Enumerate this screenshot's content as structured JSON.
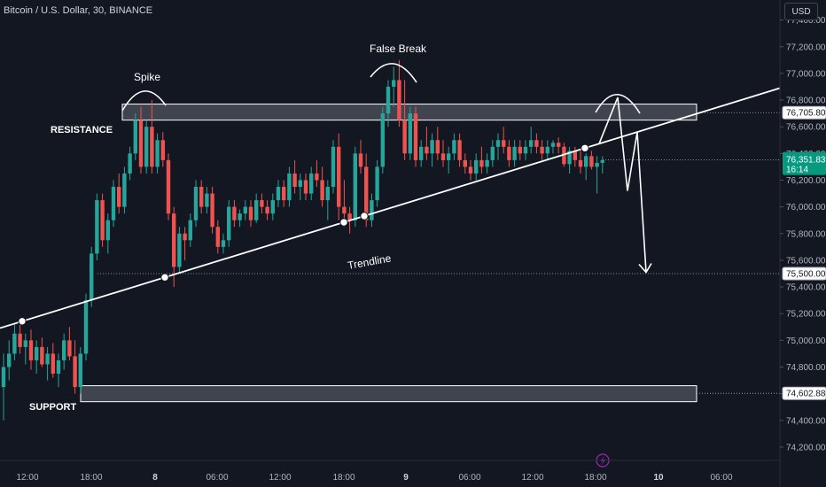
{
  "header": {
    "title": "Bitcoin / U.S. Dollar, 30, BINANCE",
    "currency": "USD"
  },
  "colors": {
    "background": "#131722",
    "up": "#26a69a",
    "down": "#ef5350",
    "accent": "#089981",
    "annotation": "#ffffff",
    "zone_fill": "#9598a1"
  },
  "annotations": {
    "spike": "Spike",
    "false_break": "False Break",
    "resistance": "RESISTANCE",
    "support": "SUPPORT",
    "trendline": "Trendline"
  },
  "price_tags": {
    "resistance": "76,705.80",
    "current": "76,351.83",
    "countdown": "16:14",
    "target": "75,500.00",
    "support": "74,602.88"
  },
  "misc": {
    "icon": "lightning-icon"
  },
  "chart_data": {
    "type": "candlestick",
    "symbol": "BTCUSD",
    "interval": "30",
    "exchange": "BINANCE",
    "y_ticks": [
      74200,
      74400,
      74600,
      74800,
      75000,
      75200,
      75400,
      75600,
      75800,
      76000,
      76200,
      76400,
      76600,
      76800,
      77000,
      77200,
      77400
    ],
    "y_tick_labels": [
      "74,200.00",
      "74,400.00",
      "74,600.00",
      "74,800.00",
      "75,000.00",
      "75,200.00",
      "75,400.00",
      "75,600.00",
      "75,800.00",
      "76,000.00",
      "76,200.00",
      "76,400.00",
      "76,600.00",
      "76,800.00",
      "77,000.00",
      "77,200.00",
      "77,400.00"
    ],
    "ylim": [
      74100,
      77550
    ],
    "x_ticks": [
      "12:00",
      "18:00",
      "8",
      "06:00",
      "12:00",
      "18:00",
      "9",
      "06:00",
      "12:00",
      "18:00",
      "10",
      "06:00"
    ],
    "levels": {
      "resistance_zone": [
        76650,
        76770
      ],
      "support_zone": [
        74540,
        74660
      ],
      "resistance_price": 76705.8,
      "target_price": 75500.0,
      "support_price": 74602.88,
      "last_price": 76351.83
    },
    "trendline": {
      "start": [
        0,
        75100
      ],
      "end": [
        120,
        76620
      ]
    },
    "candles": [
      {
        "o": 74650,
        "h": 74900,
        "l": 74400,
        "c": 74800
      },
      {
        "o": 74800,
        "h": 75000,
        "l": 74700,
        "c": 74900
      },
      {
        "o": 74900,
        "h": 75120,
        "l": 74850,
        "c": 75050
      },
      {
        "o": 75050,
        "h": 75150,
        "l": 74900,
        "c": 74950
      },
      {
        "o": 74950,
        "h": 75050,
        "l": 74820,
        "c": 75000
      },
      {
        "o": 75000,
        "h": 75080,
        "l": 74780,
        "c": 74850
      },
      {
        "o": 74850,
        "h": 75000,
        "l": 74750,
        "c": 74950
      },
      {
        "o": 74950,
        "h": 75020,
        "l": 74800,
        "c": 74820
      },
      {
        "o": 74820,
        "h": 74950,
        "l": 74700,
        "c": 74900
      },
      {
        "o": 74900,
        "h": 74980,
        "l": 74720,
        "c": 74750
      },
      {
        "o": 74750,
        "h": 74900,
        "l": 74650,
        "c": 74850
      },
      {
        "o": 74850,
        "h": 75050,
        "l": 74780,
        "c": 75000
      },
      {
        "o": 75000,
        "h": 75100,
        "l": 74850,
        "c": 74880
      },
      {
        "o": 74880,
        "h": 75000,
        "l": 74600,
        "c": 74650
      },
      {
        "o": 74650,
        "h": 74950,
        "l": 74600,
        "c": 74900
      },
      {
        "o": 74900,
        "h": 75350,
        "l": 74850,
        "c": 75300
      },
      {
        "o": 75300,
        "h": 75700,
        "l": 75250,
        "c": 75650
      },
      {
        "o": 75650,
        "h": 76100,
        "l": 75600,
        "c": 76050
      },
      {
        "o": 76050,
        "h": 76100,
        "l": 75700,
        "c": 75750
      },
      {
        "o": 75750,
        "h": 75950,
        "l": 75650,
        "c": 75900
      },
      {
        "o": 75900,
        "h": 76200,
        "l": 75850,
        "c": 76150
      },
      {
        "o": 76150,
        "h": 76250,
        "l": 75950,
        "c": 76000
      },
      {
        "o": 76000,
        "h": 76300,
        "l": 75950,
        "c": 76250
      },
      {
        "o": 76250,
        "h": 76450,
        "l": 76200,
        "c": 76400
      },
      {
        "o": 76400,
        "h": 76700,
        "l": 76350,
        "c": 76650
      },
      {
        "o": 76650,
        "h": 76750,
        "l": 76250,
        "c": 76300
      },
      {
        "o": 76300,
        "h": 76650,
        "l": 76250,
        "c": 76600
      },
      {
        "o": 76600,
        "h": 76800,
        "l": 76250,
        "c": 76300
      },
      {
        "o": 76300,
        "h": 76550,
        "l": 76250,
        "c": 76500
      },
      {
        "o": 76500,
        "h": 76560,
        "l": 76300,
        "c": 76350
      },
      {
        "o": 76350,
        "h": 76400,
        "l": 75900,
        "c": 75950
      },
      {
        "o": 75950,
        "h": 76000,
        "l": 75400,
        "c": 75550
      },
      {
        "o": 75550,
        "h": 75850,
        "l": 75500,
        "c": 75800
      },
      {
        "o": 75800,
        "h": 75850,
        "l": 75600,
        "c": 75750
      },
      {
        "o": 75750,
        "h": 75950,
        "l": 75700,
        "c": 75900
      },
      {
        "o": 75900,
        "h": 76200,
        "l": 75850,
        "c": 76150
      },
      {
        "o": 76150,
        "h": 76200,
        "l": 75950,
        "c": 76000
      },
      {
        "o": 76000,
        "h": 76150,
        "l": 75950,
        "c": 76100
      },
      {
        "o": 76100,
        "h": 76150,
        "l": 75800,
        "c": 75850
      },
      {
        "o": 75850,
        "h": 75900,
        "l": 75650,
        "c": 75700
      },
      {
        "o": 75700,
        "h": 75800,
        "l": 75650,
        "c": 75750
      },
      {
        "o": 75750,
        "h": 76050,
        "l": 75700,
        "c": 76000
      },
      {
        "o": 76000,
        "h": 76050,
        "l": 75850,
        "c": 75900
      },
      {
        "o": 75900,
        "h": 75980,
        "l": 75850,
        "c": 75950
      },
      {
        "o": 75950,
        "h": 76050,
        "l": 75900,
        "c": 76000
      },
      {
        "o": 76000,
        "h": 76050,
        "l": 75850,
        "c": 75900
      },
      {
        "o": 75900,
        "h": 76100,
        "l": 75880,
        "c": 76050
      },
      {
        "o": 76050,
        "h": 76100,
        "l": 75950,
        "c": 76000
      },
      {
        "o": 76000,
        "h": 76050,
        "l": 75900,
        "c": 75950
      },
      {
        "o": 75950,
        "h": 76100,
        "l": 75900,
        "c": 76050
      },
      {
        "o": 76050,
        "h": 76200,
        "l": 76000,
        "c": 76150
      },
      {
        "o": 76150,
        "h": 76200,
        "l": 76000,
        "c": 76050
      },
      {
        "o": 76050,
        "h": 76300,
        "l": 76000,
        "c": 76250
      },
      {
        "o": 76250,
        "h": 76350,
        "l": 76100,
        "c": 76150
      },
      {
        "o": 76150,
        "h": 76250,
        "l": 76050,
        "c": 76200
      },
      {
        "o": 76200,
        "h": 76250,
        "l": 76050,
        "c": 76100
      },
      {
        "o": 76100,
        "h": 76300,
        "l": 76050,
        "c": 76250
      },
      {
        "o": 76250,
        "h": 76350,
        "l": 76150,
        "c": 76200
      },
      {
        "o": 76200,
        "h": 76300,
        "l": 76000,
        "c": 76050
      },
      {
        "o": 76050,
        "h": 76200,
        "l": 75900,
        "c": 76150
      },
      {
        "o": 76150,
        "h": 76500,
        "l": 76100,
        "c": 76450
      },
      {
        "o": 76450,
        "h": 76550,
        "l": 75900,
        "c": 76000
      },
      {
        "o": 76000,
        "h": 76200,
        "l": 75850,
        "c": 75950
      },
      {
        "o": 75950,
        "h": 76000,
        "l": 75800,
        "c": 75900
      },
      {
        "o": 75900,
        "h": 76450,
        "l": 75850,
        "c": 76400
      },
      {
        "o": 76400,
        "h": 76500,
        "l": 76250,
        "c": 76300
      },
      {
        "o": 76300,
        "h": 76400,
        "l": 75850,
        "c": 75900
      },
      {
        "o": 75900,
        "h": 76100,
        "l": 75850,
        "c": 76050
      },
      {
        "o": 76050,
        "h": 76350,
        "l": 76000,
        "c": 76300
      },
      {
        "o": 76300,
        "h": 76750,
        "l": 76250,
        "c": 76700
      },
      {
        "o": 76700,
        "h": 76950,
        "l": 76600,
        "c": 76900
      },
      {
        "o": 76900,
        "h": 77050,
        "l": 76750,
        "c": 76950
      },
      {
        "o": 76950,
        "h": 77100,
        "l": 76600,
        "c": 76650
      },
      {
        "o": 76650,
        "h": 76950,
        "l": 76350,
        "c": 76400
      },
      {
        "o": 76400,
        "h": 76750,
        "l": 76350,
        "c": 76700
      },
      {
        "o": 76700,
        "h": 76750,
        "l": 76300,
        "c": 76350
      },
      {
        "o": 76350,
        "h": 76500,
        "l": 76300,
        "c": 76450
      },
      {
        "o": 76450,
        "h": 76600,
        "l": 76350,
        "c": 76400
      },
      {
        "o": 76400,
        "h": 76550,
        "l": 76300,
        "c": 76500
      },
      {
        "o": 76500,
        "h": 76600,
        "l": 76350,
        "c": 76400
      },
      {
        "o": 76400,
        "h": 76500,
        "l": 76300,
        "c": 76350
      },
      {
        "o": 76350,
        "h": 76450,
        "l": 76250,
        "c": 76400
      },
      {
        "o": 76400,
        "h": 76550,
        "l": 76350,
        "c": 76500
      },
      {
        "o": 76500,
        "h": 76550,
        "l": 76300,
        "c": 76350
      },
      {
        "o": 76350,
        "h": 76400,
        "l": 76250,
        "c": 76300
      },
      {
        "o": 76300,
        "h": 76350,
        "l": 76200,
        "c": 76250
      },
      {
        "o": 76250,
        "h": 76400,
        "l": 76200,
        "c": 76350
      },
      {
        "o": 76350,
        "h": 76450,
        "l": 76250,
        "c": 76300
      },
      {
        "o": 76300,
        "h": 76400,
        "l": 76250,
        "c": 76350
      },
      {
        "o": 76350,
        "h": 76500,
        "l": 76300,
        "c": 76450
      },
      {
        "o": 76450,
        "h": 76550,
        "l": 76350,
        "c": 76500
      },
      {
        "o": 76500,
        "h": 76600,
        "l": 76400,
        "c": 76450
      },
      {
        "o": 76450,
        "h": 76500,
        "l": 76300,
        "c": 76350
      },
      {
        "o": 76350,
        "h": 76500,
        "l": 76300,
        "c": 76450
      },
      {
        "o": 76450,
        "h": 76500,
        "l": 76350,
        "c": 76400
      },
      {
        "o": 76400,
        "h": 76500,
        "l": 76350,
        "c": 76450
      },
      {
        "o": 76450,
        "h": 76600,
        "l": 76400,
        "c": 76500
      },
      {
        "o": 76500,
        "h": 76550,
        "l": 76400,
        "c": 76450
      },
      {
        "o": 76450,
        "h": 76500,
        "l": 76350,
        "c": 76400
      },
      {
        "o": 76400,
        "h": 76500,
        "l": 76350,
        "c": 76450
      },
      {
        "o": 76450,
        "h": 76500,
        "l": 76400,
        "c": 76480
      },
      {
        "o": 76480,
        "h": 76520,
        "l": 76400,
        "c": 76450
      },
      {
        "o": 76450,
        "h": 76480,
        "l": 76300,
        "c": 76320
      },
      {
        "o": 76320,
        "h": 76450,
        "l": 76250,
        "c": 76420
      },
      {
        "o": 76420,
        "h": 76450,
        "l": 76300,
        "c": 76350
      },
      {
        "o": 76350,
        "h": 76420,
        "l": 76250,
        "c": 76300
      },
      {
        "o": 76300,
        "h": 76400,
        "l": 76200,
        "c": 76380
      },
      {
        "o": 76380,
        "h": 76420,
        "l": 76280,
        "c": 76300
      },
      {
        "o": 76300,
        "h": 76380,
        "l": 76100,
        "c": 76330
      },
      {
        "o": 76330,
        "h": 76380,
        "l": 76250,
        "c": 76350
      }
    ]
  }
}
